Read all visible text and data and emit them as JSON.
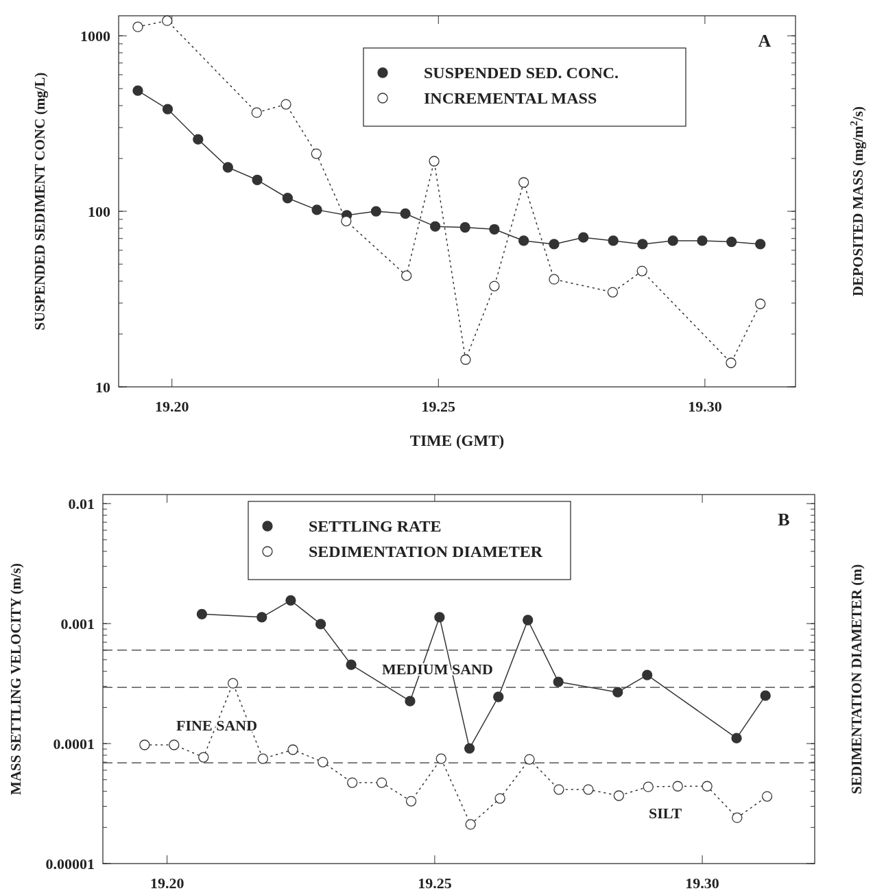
{
  "chart_data": [
    {
      "type": "line",
      "xlabel": "TIME (GMT)",
      "ylabel": "SUSPENDED SEDIMENT CONC (mg/L)",
      "y2label": "DEPOSITED MASS (mg/m$^{2}$/s)",
      "annotations": [
        "A"
      ],
      "log": "y",
      "xlim": [
        19.19,
        19.317
      ],
      "ylim": [
        10,
        1300
      ],
      "xticks": [
        {
          "value": 19.2,
          "label": "19.20"
        },
        {
          "value": 19.25,
          "label": "19.25"
        },
        {
          "value": 19.3,
          "label": "19.30"
        }
      ],
      "yticks": [
        10,
        100,
        1000
      ],
      "legend": "top right",
      "marker": "circle",
      "series": [
        {
          "name": "SUSPENDED SED. CONC.",
          "color": "#333333",
          "line_style": "solid",
          "x": [
            19.1936,
            19.1992,
            19.2049,
            19.2105,
            19.216,
            19.2217,
            19.2272,
            19.2328,
            19.2383,
            19.2438,
            19.2494,
            19.255,
            19.2605,
            19.266,
            19.2717,
            19.2772,
            19.2828,
            19.2883,
            19.294,
            19.2995,
            19.305,
            19.3104
          ],
          "values": [
            487,
            382,
            257,
            178,
            151,
            119,
            102,
            95,
            100,
            97,
            82,
            81,
            79,
            68,
            65,
            71,
            68,
            65,
            68,
            68,
            67,
            65
          ]
        },
        {
          "name": "INCREMENTAL MASS",
          "color": "#ffffff",
          "line_style": "dotted",
          "x": [
            19.1936,
            19.1991,
            19.2159,
            19.2214,
            19.2271,
            19.2327,
            19.244,
            19.2492,
            19.2551,
            19.2605,
            19.266,
            19.2717,
            19.2827,
            19.2882,
            19.3049,
            19.3104
          ],
          "values": [
            1124,
            1219,
            365,
            407,
            213,
            88,
            43,
            193,
            14.3,
            37.5,
            146,
            41,
            34.6,
            45.7,
            13.7,
            29.7
          ]
        }
      ]
    },
    {
      "type": "line",
      "ylabel": "MASS SETTLING VELOCITY (m/s)",
      "y2label": "SEDIMENTATION DIAMETER (m)",
      "annotations": [
        "B",
        "MEDIUM SAND",
        "FINE SAND",
        "SILT"
      ],
      "log": "y",
      "xlim": [
        19.188,
        19.321
      ],
      "ylim": [
        1e-05,
        0.0119
      ],
      "xticks": [
        {
          "value": 19.2,
          "label": "19.20"
        },
        {
          "value": 19.25,
          "label": "19.25"
        },
        {
          "value": 19.3,
          "label": "19.30"
        }
      ],
      "yticks": [
        {
          "value": 1e-05,
          "label": "0.00001"
        },
        0.0001,
        0.001,
        0.01
      ],
      "legend": "top left",
      "marker": "circle",
      "ref_lines": [
        {
          "axis": "y",
          "value": 0.0006,
          "line_style": "dashed"
        },
        {
          "axis": "y",
          "value": 0.000294,
          "line_style": "dashed"
        },
        {
          "axis": "y",
          "value": 6.91e-05,
          "line_style": "dashed"
        }
      ],
      "series": [
        {
          "name": "SETTLING RATE",
          "color": "#333333",
          "line_style": "solid",
          "x": [
            19.2065,
            19.2177,
            19.2231,
            19.2287,
            19.2344,
            19.2454,
            19.2509,
            19.2565,
            19.2619,
            19.2674,
            19.2731,
            19.2842,
            19.2897,
            19.3064,
            19.3118
          ],
          "values": [
            0.0012,
            0.00113,
            0.00156,
            0.00099,
            0.000454,
            0.000226,
            0.00113,
            9.12e-05,
            0.000245,
            0.00107,
            0.000327,
            0.000268,
            0.000373,
            0.000111,
            0.000251
          ]
        },
        {
          "name": "SEDIMENTATION DIAMETER",
          "color": "#ffffff",
          "line_style": "dotted",
          "x": [
            19.1958,
            19.2013,
            19.2068,
            19.2123,
            19.2179,
            19.2235,
            19.2291,
            19.2346,
            19.2401,
            19.2456,
            19.2512,
            19.2567,
            19.2622,
            19.2677,
            19.2732,
            19.2787,
            19.2844,
            19.2899,
            19.2954,
            19.3009,
            19.3065,
            19.3121
          ],
          "values": [
            9.75e-05,
            9.75e-05,
            7.69e-05,
            0.000318,
            7.48e-05,
            8.89e-05,
            7.01e-05,
            4.72e-05,
            4.72e-05,
            3.31e-05,
            7.48e-05,
            2.12e-05,
            3.49e-05,
            7.39e-05,
            4.14e-05,
            4.14e-05,
            3.68e-05,
            4.36e-05,
            4.41e-05,
            4.41e-05,
            2.41e-05,
            3.63e-05
          ]
        }
      ]
    }
  ]
}
